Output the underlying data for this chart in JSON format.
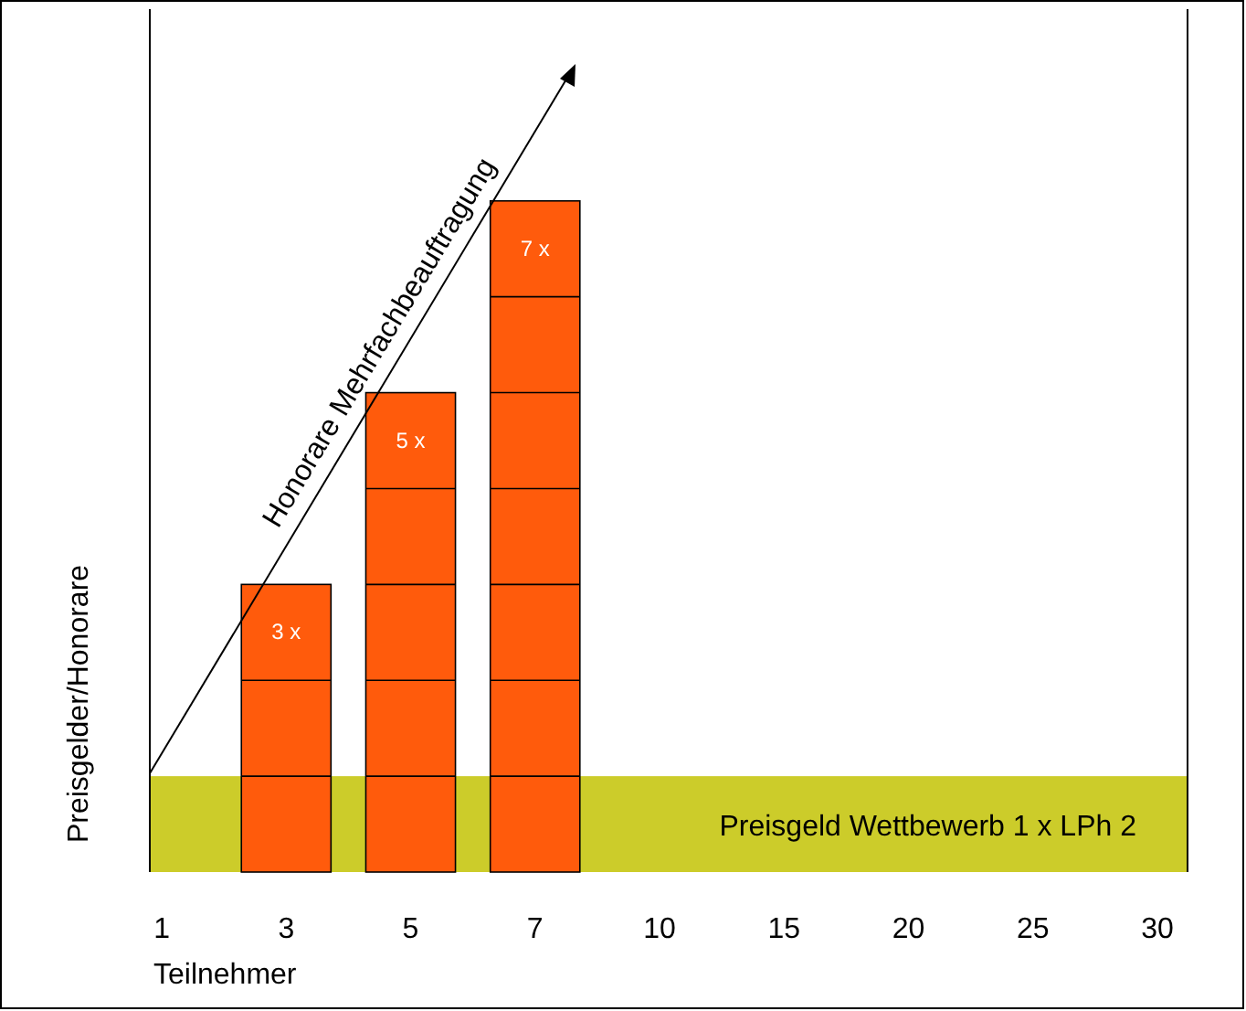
{
  "chart_data": {
    "type": "bar",
    "ylabel": "Preisgelder/Honorare",
    "xlabel": "Teilnehmer",
    "categories": [
      "1",
      "3",
      "5",
      "7",
      "10",
      "15",
      "20",
      "25",
      "30"
    ],
    "values": [
      null,
      3,
      5,
      7,
      null,
      null,
      null,
      null,
      null
    ],
    "value_labels": [
      null,
      "3 x",
      "5 x",
      "7 x",
      null,
      null,
      null,
      null,
      null
    ],
    "color": "#ff5b0c",
    "ylim": [
      0,
      9
    ],
    "bands": [
      {
        "axis": "y",
        "from": 0,
        "to": 1,
        "label": "Preisgeld Wettbewerb 1 x LPh 2",
        "color": "#cccc2a"
      }
    ],
    "annotations": [
      "Honorare Mehrfachbeauftragung"
    ]
  }
}
